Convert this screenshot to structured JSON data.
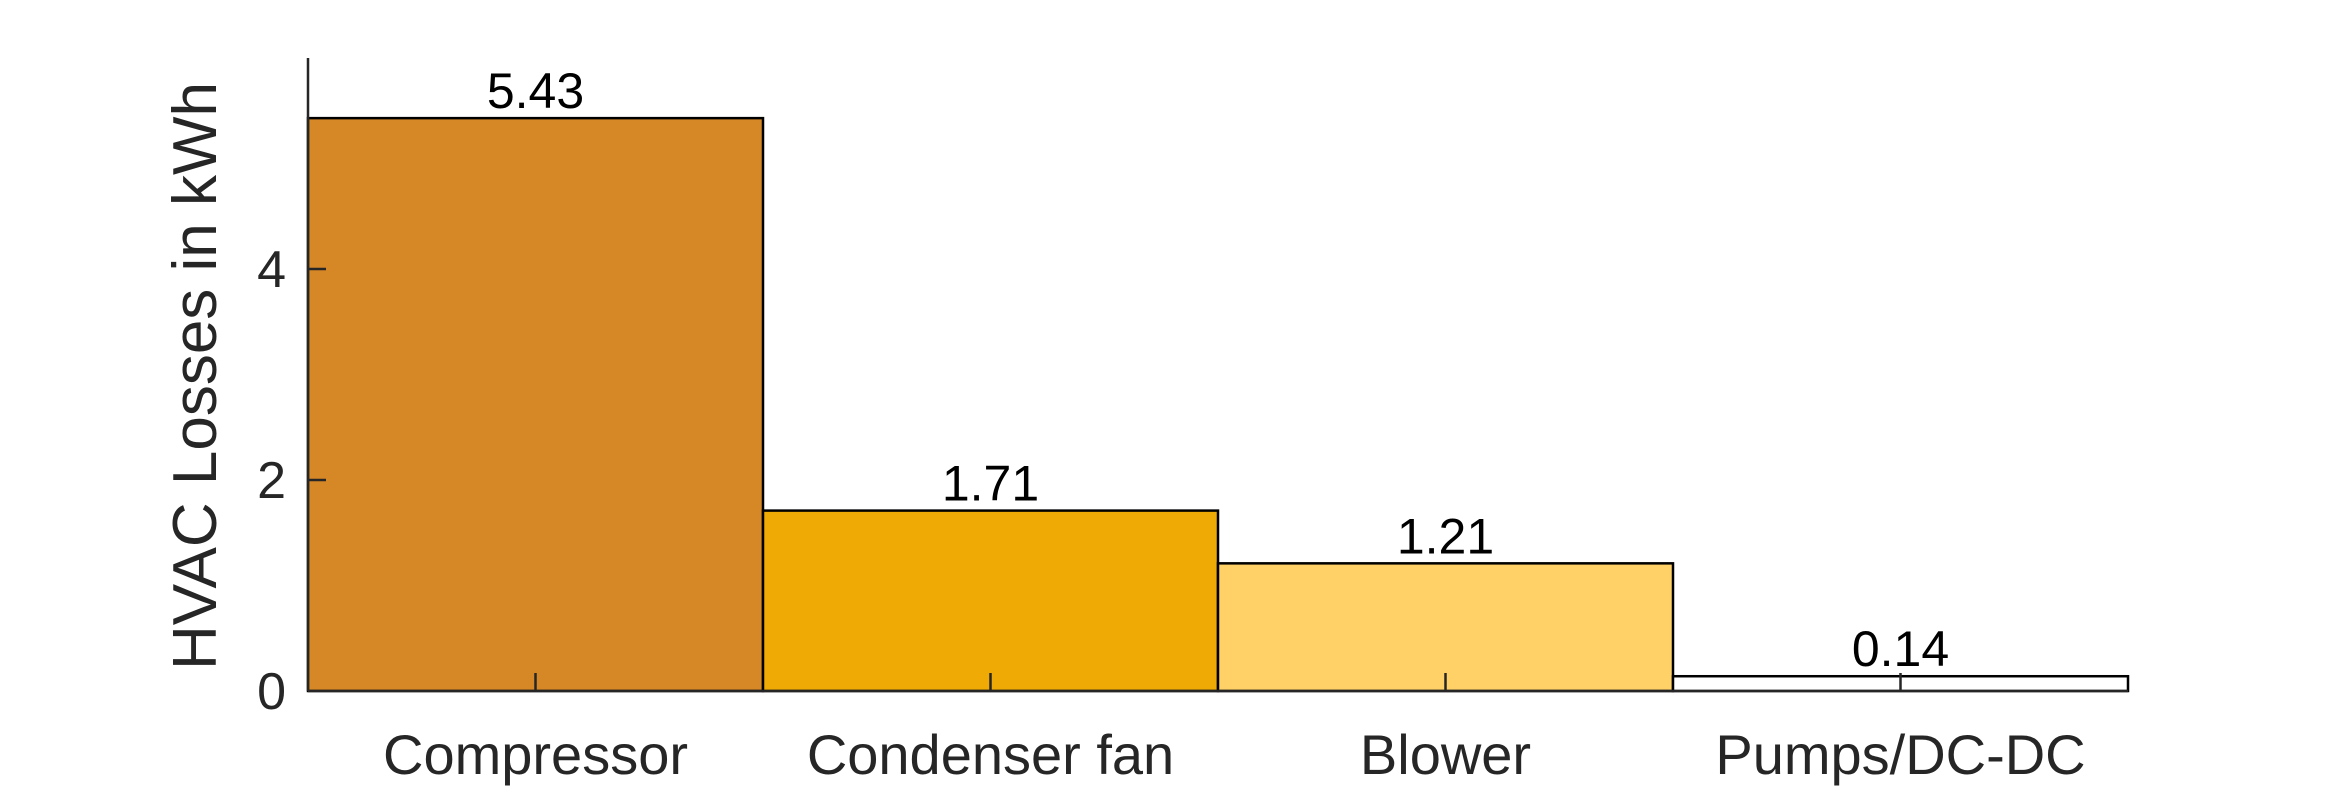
{
  "chart_data": {
    "type": "bar",
    "title": "",
    "xlabel": "",
    "ylabel": "HVAC Losses in kWh",
    "categories": [
      "Compressor",
      "Condenser fan",
      "Blower",
      "Pumps/DC-DC"
    ],
    "values": [
      5.43,
      1.71,
      1.21,
      0.14
    ],
    "value_labels": [
      "5.43",
      "1.71",
      "1.21",
      "0.14"
    ],
    "colors": [
      "#d68726",
      "#f0aa05",
      "#ffd166",
      "#ffffff"
    ],
    "ylim": [
      0,
      6
    ],
    "yticks": [
      0,
      2,
      4
    ],
    "ytick_labels": [
      "0",
      "2",
      "4"
    ],
    "grid": false,
    "legend": "none"
  }
}
